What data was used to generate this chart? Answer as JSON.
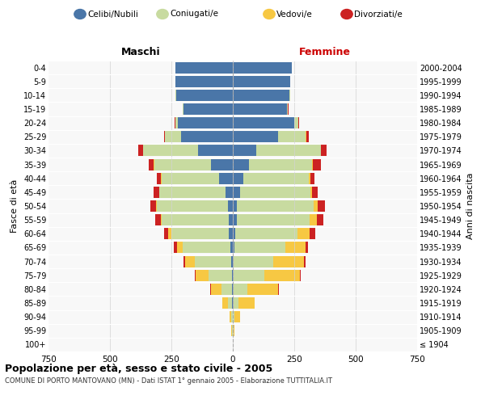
{
  "age_groups": [
    "100+",
    "95-99",
    "90-94",
    "85-89",
    "80-84",
    "75-79",
    "70-74",
    "65-69",
    "60-64",
    "55-59",
    "50-54",
    "45-49",
    "40-44",
    "35-39",
    "30-34",
    "25-29",
    "20-24",
    "15-19",
    "10-14",
    "5-9",
    "0-4"
  ],
  "birth_years": [
    "≤ 1904",
    "1905-1909",
    "1910-1914",
    "1915-1919",
    "1920-1924",
    "1925-1929",
    "1930-1934",
    "1935-1939",
    "1940-1944",
    "1945-1949",
    "1950-1954",
    "1955-1959",
    "1960-1964",
    "1965-1969",
    "1970-1974",
    "1975-1979",
    "1980-1984",
    "1985-1989",
    "1990-1994",
    "1995-1999",
    "2000-2004"
  ],
  "male": {
    "celibi": [
      0,
      0,
      0,
      2,
      2,
      3,
      5,
      10,
      15,
      18,
      20,
      28,
      55,
      90,
      140,
      210,
      225,
      200,
      230,
      235,
      235
    ],
    "coniugati": [
      0,
      2,
      5,
      18,
      45,
      95,
      150,
      195,
      235,
      270,
      290,
      270,
      235,
      230,
      225,
      65,
      10,
      5,
      2,
      0,
      0
    ],
    "vedovi": [
      0,
      3,
      8,
      22,
      42,
      52,
      38,
      22,
      12,
      6,
      4,
      2,
      2,
      1,
      1,
      0,
      0,
      0,
      0,
      0,
      0
    ],
    "divorziati": [
      0,
      0,
      0,
      0,
      2,
      4,
      8,
      12,
      18,
      22,
      22,
      22,
      18,
      22,
      18,
      6,
      2,
      0,
      0,
      0,
      0
    ]
  },
  "female": {
    "nubili": [
      0,
      0,
      0,
      2,
      2,
      2,
      4,
      8,
      10,
      15,
      18,
      28,
      42,
      65,
      95,
      185,
      250,
      220,
      230,
      235,
      240
    ],
    "coniugate": [
      0,
      2,
      8,
      22,
      58,
      125,
      162,
      205,
      252,
      298,
      312,
      288,
      268,
      258,
      262,
      112,
      15,
      5,
      2,
      0,
      0
    ],
    "vedove": [
      0,
      6,
      22,
      65,
      125,
      145,
      125,
      82,
      52,
      28,
      16,
      8,
      5,
      3,
      2,
      1,
      0,
      0,
      0,
      0,
      0
    ],
    "divorziate": [
      0,
      0,
      0,
      1,
      2,
      4,
      6,
      10,
      22,
      28,
      28,
      22,
      18,
      32,
      22,
      10,
      4,
      1,
      0,
      0,
      0
    ]
  },
  "colors": {
    "celibi": "#4a76a8",
    "coniugati": "#c8dba0",
    "vedovi": "#f7c843",
    "divorziati": "#cc2222"
  },
  "xlim": 750,
  "title": "Popolazione per età, sesso e stato civile - 2005",
  "subtitle": "COMUNE DI PORTO MANTOVANO (MN) - Dati ISTAT 1° gennaio 2005 - Elaborazione TUTTITALIA.IT",
  "ylabel_left": "Fasce di età",
  "ylabel_right": "Anni di nascita"
}
